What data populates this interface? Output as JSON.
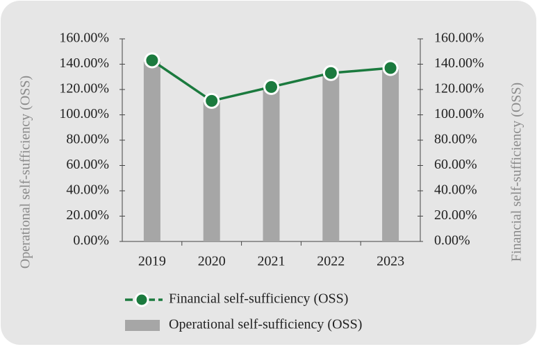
{
  "chart_data": {
    "type": "combo",
    "categories": [
      "2019",
      "2020",
      "2021",
      "2022",
      "2023"
    ],
    "series": [
      {
        "name": "Financial self-sufficiency (OSS)",
        "type": "line",
        "axis": "y2",
        "color": "#1b7a3e",
        "values": [
          143,
          111,
          122,
          133,
          137
        ]
      },
      {
        "name": "Operational self-sufficiency (OSS)",
        "type": "bar",
        "color": "#a6a6a6",
        "values": [
          142,
          110,
          121,
          132,
          136
        ]
      }
    ],
    "ylabel": "Operational self-sufficiency (OSS)",
    "y2label": "Financial self-sufficiency (OSS)",
    "ylim": [
      0,
      160
    ],
    "yticks": [
      {
        "value": 0,
        "label": "0.00%"
      },
      {
        "value": 20,
        "label": "20.00%"
      },
      {
        "value": 40,
        "label": "40.00%"
      },
      {
        "value": 60,
        "label": "60.00%"
      },
      {
        "value": 80,
        "label": "80.00%"
      },
      {
        "value": 100,
        "label": "100.00%"
      },
      {
        "value": 120,
        "label": "120.00%"
      },
      {
        "value": 140,
        "label": "140.00%"
      },
      {
        "value": 160,
        "label": "160.00%"
      }
    ],
    "y2lim": [
      0,
      160
    ],
    "y2ticks": [
      {
        "value": 0,
        "label": "0.00%"
      },
      {
        "value": 20,
        "label": "20.00%"
      },
      {
        "value": 40,
        "label": "40.00%"
      },
      {
        "value": 60,
        "label": "60.00%"
      },
      {
        "value": 80,
        "label": "80.00%"
      },
      {
        "value": 100,
        "label": "100.00%"
      },
      {
        "value": 120,
        "label": "120.00%"
      },
      {
        "value": 140,
        "label": "140.00%"
      },
      {
        "value": 160,
        "label": "160.00%"
      }
    ],
    "legend": "bottom-left"
  }
}
